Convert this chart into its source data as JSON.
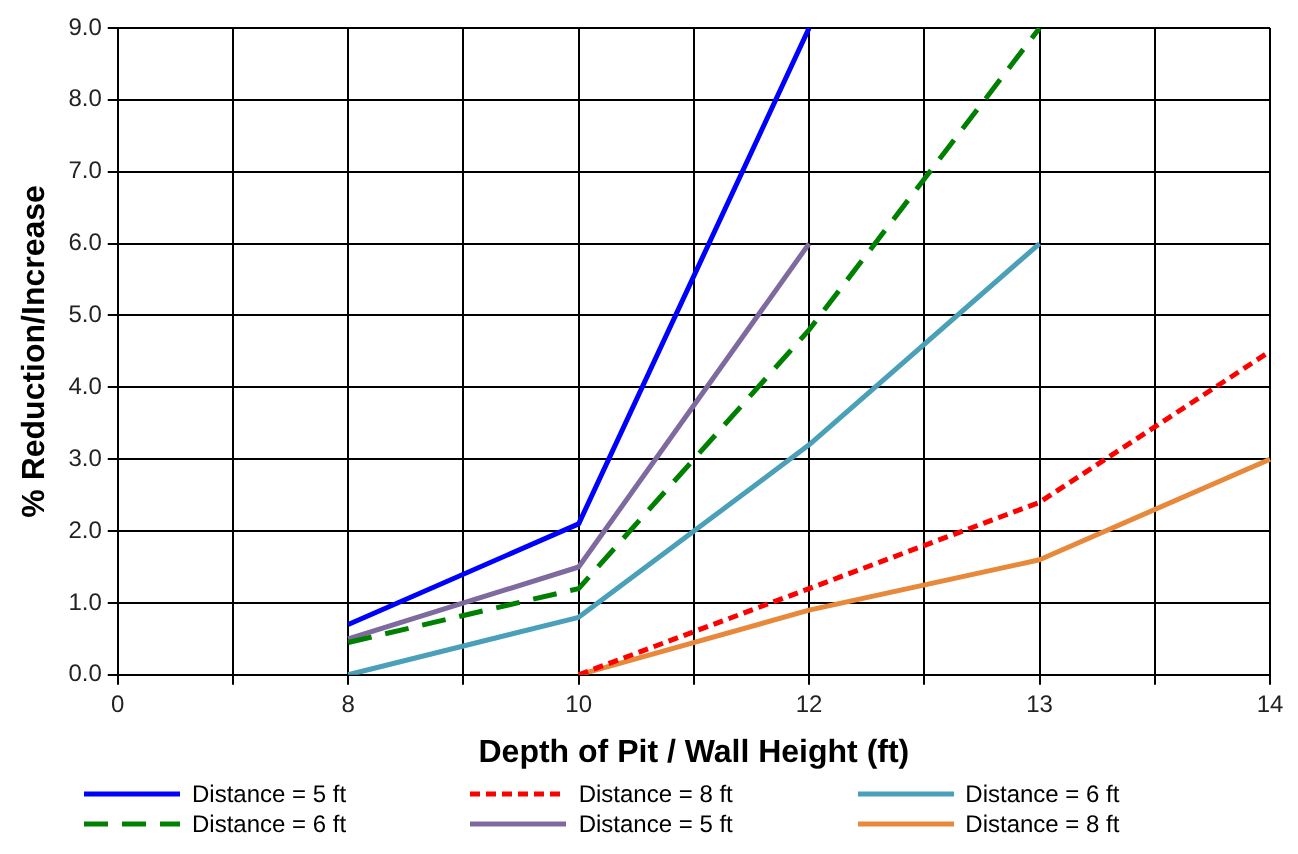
{
  "chart_data": {
    "type": "line",
    "xlabel": "Depth of Pit / Wall Height (ft)",
    "ylabel": "% Reduction/Increase",
    "categories": [
      "0",
      null,
      "8",
      null,
      "10",
      null,
      "12",
      null,
      "13",
      null,
      "14"
    ],
    "series": [
      {
        "name": "Distance = 5 ft",
        "color": "#0000ff",
        "line_style": "solid",
        "values": [
          null,
          null,
          0.7,
          null,
          2.1,
          null,
          9.0,
          null,
          null,
          null,
          null
        ]
      },
      {
        "name": "Distance = 6 ft",
        "color": "#008000",
        "line_style": "dashed",
        "values": [
          null,
          null,
          0.45,
          null,
          1.2,
          null,
          4.8,
          null,
          9.0,
          null,
          null
        ]
      },
      {
        "name": "Distance = 8 ft",
        "color": "#ff0000",
        "line_style": "dotted",
        "values": [
          null,
          null,
          null,
          null,
          0.0,
          null,
          1.2,
          null,
          2.4,
          null,
          4.5
        ]
      },
      {
        "name": "Distance = 5 ft",
        "color": "#7f6aa0",
        "line_style": "solid",
        "values": [
          null,
          null,
          0.5,
          null,
          1.5,
          null,
          6.0,
          null,
          null,
          null,
          null
        ]
      },
      {
        "name": "Distance = 6 ft",
        "color": "#4aa0b8",
        "line_style": "solid",
        "values": [
          null,
          null,
          0.0,
          null,
          0.8,
          null,
          3.2,
          null,
          6.0,
          null,
          null
        ]
      },
      {
        "name": "Distance = 8 ft",
        "color": "#e8883a",
        "line_style": "solid",
        "values": [
          null,
          null,
          null,
          null,
          0.0,
          null,
          0.9,
          null,
          1.6,
          null,
          3.0
        ]
      }
    ],
    "ylim": [
      0,
      9
    ],
    "yticks": [
      {
        "value": 0,
        "label": "0.0"
      },
      {
        "value": 1,
        "label": "1.0"
      },
      {
        "value": 2,
        "label": "2.0"
      },
      {
        "value": 3,
        "label": "3.0"
      },
      {
        "value": 4,
        "label": "4.0"
      },
      {
        "value": 5,
        "label": "5.0"
      },
      {
        "value": 6,
        "label": "6.0"
      },
      {
        "value": 7,
        "label": "7.0"
      },
      {
        "value": 8,
        "label": "8.0"
      },
      {
        "value": 9,
        "label": "9.0"
      }
    ],
    "grid": true,
    "legend": "bottom",
    "marker": "none"
  }
}
